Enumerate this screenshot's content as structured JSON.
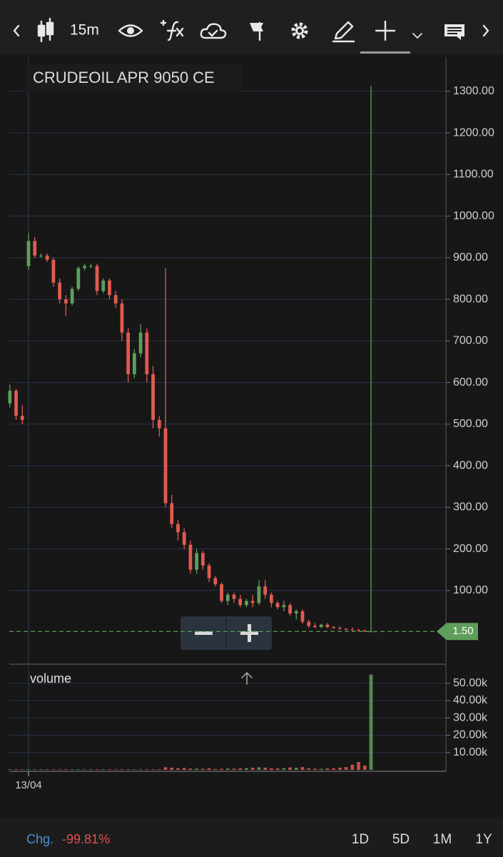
{
  "toolbar": {
    "interval": "15m"
  },
  "chart_data": {
    "type": "candlestick",
    "title": "CRUDEOIL APR 9050 CE",
    "categories": [
      null,
      null,
      null,
      "13/04",
      null,
      null,
      null,
      null,
      null,
      null,
      null,
      null,
      null,
      null,
      null,
      null,
      null,
      null,
      null,
      null,
      null,
      null,
      null,
      null,
      null,
      null,
      null,
      null,
      null,
      null,
      null,
      null,
      null,
      null,
      null,
      null,
      null,
      null,
      null,
      null,
      null,
      null,
      null,
      null,
      null,
      null,
      null,
      null,
      null,
      null,
      null,
      null,
      null,
      null,
      null,
      null,
      null,
      null,
      null
    ],
    "open": [
      550,
      580,
      520,
      880,
      940,
      905,
      905,
      895,
      840,
      800,
      790,
      825,
      875,
      880,
      880,
      820,
      845,
      810,
      790,
      720,
      620,
      670,
      720,
      620,
      510,
      490,
      310,
      260,
      240,
      210,
      150,
      190,
      160,
      130,
      115,
      75,
      90,
      80,
      65,
      75,
      70,
      110,
      90,
      70,
      60,
      65,
      45,
      50,
      25,
      15,
      12,
      18,
      12,
      10,
      8,
      6,
      5,
      4,
      1.5
    ],
    "high": [
      595,
      585,
      545,
      960,
      950,
      910,
      910,
      900,
      850,
      810,
      830,
      880,
      885,
      885,
      885,
      850,
      850,
      820,
      800,
      730,
      680,
      740,
      730,
      640,
      520,
      875,
      330,
      270,
      250,
      220,
      200,
      195,
      165,
      135,
      120,
      95,
      95,
      90,
      80,
      90,
      125,
      125,
      95,
      75,
      75,
      70,
      55,
      55,
      30,
      22,
      20,
      22,
      15,
      14,
      10,
      12,
      8,
      6,
      1313
    ],
    "low": [
      540,
      510,
      500,
      870,
      900,
      900,
      890,
      830,
      790,
      760,
      785,
      820,
      870,
      875,
      810,
      815,
      800,
      780,
      700,
      600,
      610,
      660,
      600,
      490,
      470,
      300,
      250,
      220,
      200,
      140,
      140,
      150,
      120,
      110,
      70,
      65,
      70,
      60,
      60,
      60,
      65,
      80,
      60,
      55,
      50,
      40,
      30,
      20,
      10,
      10,
      10,
      10,
      8,
      6,
      4,
      3,
      2,
      1,
      1
    ],
    "close": [
      580,
      520,
      510,
      940,
      905,
      905,
      895,
      840,
      800,
      790,
      825,
      875,
      880,
      880,
      820,
      845,
      810,
      790,
      720,
      620,
      670,
      720,
      620,
      510,
      490,
      310,
      260,
      240,
      210,
      150,
      190,
      160,
      130,
      115,
      75,
      90,
      80,
      65,
      75,
      70,
      110,
      90,
      70,
      60,
      65,
      45,
      50,
      25,
      15,
      12,
      18,
      12,
      10,
      8,
      6,
      5,
      4,
      1.5,
      1.5
    ],
    "up_color": "#5e9e5a",
    "down_color": "#e05a50",
    "ylim": [
      -77,
      1382
    ],
    "yticks": [
      {
        "value": 100,
        "label": "100.00"
      },
      {
        "value": 200,
        "label": "200.00"
      },
      {
        "value": 300,
        "label": "300.00"
      },
      {
        "value": 400,
        "label": "400.00"
      },
      {
        "value": 500,
        "label": "500.00"
      },
      {
        "value": 600,
        "label": "600.00"
      },
      {
        "value": 700,
        "label": "700.00"
      },
      {
        "value": 800,
        "label": "800.00"
      },
      {
        "value": 900,
        "label": "900.00"
      },
      {
        "value": 1000,
        "label": "1000.00"
      },
      {
        "value": 1100,
        "label": "1100.00"
      },
      {
        "value": 1200,
        "label": "1200.00"
      },
      {
        "value": 1300,
        "label": "1300.00"
      }
    ],
    "grid": true,
    "last_price": {
      "value": 1.5,
      "label": "1.50"
    },
    "volume": {
      "label": "volume",
      "values": [
        300,
        300,
        300,
        300,
        300,
        300,
        300,
        300,
        300,
        300,
        300,
        300,
        300,
        300,
        300,
        300,
        300,
        300,
        300,
        300,
        300,
        300,
        300,
        300,
        300,
        1500,
        1200,
        900,
        1100,
        800,
        700,
        600,
        900,
        500,
        600,
        800,
        700,
        900,
        1000,
        1200,
        1500,
        1300,
        900,
        800,
        1000,
        1400,
        1200,
        1600,
        900,
        700,
        600,
        800,
        900,
        1200,
        1600,
        3000,
        4500,
        2500,
        55000
      ],
      "ylim": [
        0,
        61000
      ],
      "yticks": [
        {
          "value": 10000,
          "label": "10.00k"
        },
        {
          "value": 20000,
          "label": "20.00k"
        },
        {
          "value": 30000,
          "label": "30.00k"
        },
        {
          "value": 40000,
          "label": "40.00k"
        },
        {
          "value": 50000,
          "label": "50.00k"
        }
      ]
    }
  },
  "footer": {
    "change_label": "Chg.",
    "change": "-99.81%",
    "ranges": [
      "1D",
      "5D",
      "1M",
      "1Y"
    ]
  }
}
